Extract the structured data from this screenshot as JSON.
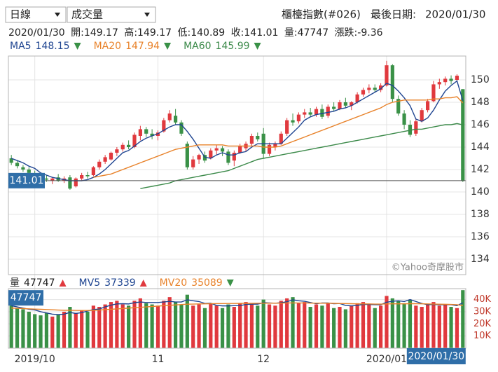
{
  "header": {
    "period": "日線",
    "indicator": "成交量",
    "symbol": "櫃檯指數(#026)",
    "last_date_label": "最後日期:",
    "watermark": "©Yahoo奇摩股市"
  },
  "quote": {
    "labels": {
      "open": "開:",
      "high": "高:",
      "low": "低:",
      "close": "收:",
      "volume": "量:",
      "change": "漲跌:"
    },
    "change": -9.36
  },
  "chart_data": {
    "type": "candlestick",
    "categories": [
      null,
      null,
      null,
      null,
      "2019/10",
      null,
      null,
      null,
      null,
      null,
      null,
      null,
      null,
      null,
      null,
      null,
      null,
      null,
      null,
      null,
      null,
      null,
      null,
      null,
      null,
      "11",
      null,
      null,
      null,
      null,
      null,
      null,
      null,
      null,
      null,
      null,
      null,
      null,
      null,
      null,
      null,
      null,
      null,
      "12",
      null,
      null,
      null,
      null,
      null,
      null,
      null,
      null,
      null,
      null,
      null,
      null,
      null,
      null,
      null,
      null,
      null,
      null,
      null,
      null,
      "2020/01",
      null,
      null,
      null,
      null,
      null,
      null,
      null,
      null,
      null,
      null,
      null,
      null,
      "2020/01/30"
    ],
    "open": [
      143.0,
      142.6,
      142.2,
      142.0,
      141.6,
      141.4,
      141.2,
      141.0,
      141.3,
      141.0,
      141.3,
      140.5,
      141.2,
      141.5,
      141.5,
      142.2,
      142.7,
      142.9,
      143.5,
      143.8,
      144.2,
      144.0,
      145.0,
      145.6,
      145.2,
      145.0,
      145.4,
      146.4,
      146.8,
      146.2,
      144.3,
      142.2,
      142.9,
      143.3,
      143.0,
      143.7,
      143.9,
      143.6,
      142.8,
      143.5,
      143.9,
      144.3,
      145.0,
      145.2,
      143.4,
      144.0,
      144.3,
      145.2,
      146.4,
      146.3,
      146.9,
      147.1,
      146.9,
      147.4,
      146.8,
      147.6,
      147.4,
      148.0,
      147.7,
      148.0,
      148.7,
      149.1,
      149.3,
      149.1,
      149.5,
      151.3,
      148.3,
      147.0,
      146.0,
      145.2,
      146.3,
      147.3,
      148.1,
      149.6,
      149.8,
      150.1,
      150.0,
      149.17
    ],
    "high": [
      143.3,
      142.8,
      142.4,
      142.2,
      141.9,
      141.7,
      141.5,
      141.3,
      141.6,
      141.4,
      141.5,
      141.3,
      141.7,
      141.8,
      142.3,
      142.9,
      143.3,
      143.6,
      144.0,
      144.4,
      144.6,
      145.3,
      145.9,
      145.8,
      145.6,
      145.5,
      146.6,
      147.3,
      147.4,
      146.4,
      144.5,
      143.2,
      143.4,
      143.6,
      143.9,
      144.2,
      144.1,
      143.8,
      143.7,
      144.3,
      144.5,
      145.2,
      145.3,
      145.7,
      144.4,
      144.5,
      145.4,
      146.6,
      147.0,
      147.1,
      147.4,
      147.5,
      147.6,
      147.8,
      147.8,
      148.0,
      148.2,
      148.4,
      148.1,
      148.9,
      149.3,
      149.6,
      149.6,
      149.7,
      151.7,
      151.4,
      148.6,
      147.3,
      146.4,
      146.5,
      147.5,
      148.3,
      149.9,
      150.1,
      150.3,
      150.4,
      150.5,
      149.17
    ],
    "low": [
      142.4,
      142.1,
      141.8,
      141.5,
      141.2,
      141.0,
      140.9,
      140.7,
      140.9,
      140.8,
      140.2,
      140.4,
      141.0,
      141.2,
      141.4,
      142.0,
      142.5,
      142.8,
      143.2,
      143.6,
      143.8,
      143.9,
      144.6,
      144.9,
      144.7,
      144.6,
      145.3,
      146.2,
      146.0,
      145.0,
      142.0,
      142.0,
      142.5,
      142.6,
      142.9,
      143.3,
      143.2,
      142.4,
      142.3,
      143.4,
      143.6,
      144.1,
      144.5,
      143.0,
      143.2,
      143.7,
      144.2,
      145.0,
      145.9,
      146.1,
      146.6,
      146.7,
      146.7,
      146.5,
      146.6,
      147.2,
      147.3,
      147.5,
      147.3,
      147.9,
      148.5,
      148.8,
      148.9,
      148.9,
      149.4,
      148.0,
      146.8,
      145.6,
      144.9,
      145.0,
      146.2,
      147.1,
      148.0,
      149.2,
      149.5,
      149.6,
      149.8,
      140.89
    ],
    "close": [
      142.6,
      142.3,
      142.0,
      141.7,
      141.4,
      141.2,
      141.1,
      141.2,
      141.0,
      141.2,
      140.3,
      141.2,
      141.5,
      141.4,
      142.2,
      142.7,
      143.1,
      143.5,
      143.8,
      144.2,
      144.0,
      145.1,
      145.6,
      145.2,
      145.0,
      145.3,
      146.4,
      147.0,
      146.2,
      145.2,
      142.2,
      142.9,
      143.3,
      142.8,
      143.7,
      143.9,
      143.6,
      142.6,
      143.5,
      144.1,
      144.3,
      145.0,
      144.7,
      143.4,
      144.2,
      144.3,
      145.2,
      146.4,
      146.2,
      146.9,
      147.1,
      146.9,
      147.4,
      146.7,
      147.6,
      147.4,
      148.0,
      147.7,
      148.0,
      148.7,
      149.1,
      149.3,
      149.1,
      149.5,
      151.3,
      148.3,
      147.0,
      146.0,
      145.1,
      146.3,
      147.3,
      148.1,
      149.6,
      149.8,
      150.1,
      149.9,
      150.37,
      141.01
    ],
    "up_color": "#e0393e",
    "down_color": "#3a9147",
    "ylim": [
      132.625,
      152.125
    ],
    "yticks": [
      134,
      136,
      138,
      140,
      142,
      144,
      146,
      148,
      150
    ],
    "grid": true,
    "ma": [
      {
        "name": "MA5",
        "color": "#1f4591",
        "values": [
          143.0,
          142.8,
          142.6,
          142.3,
          142.1,
          141.7,
          141.5,
          141.3,
          141.2,
          141.1,
          141.0,
          141.0,
          141.0,
          141.1,
          141.3,
          141.6,
          142.0,
          142.5,
          143.0,
          143.5,
          143.7,
          144.1,
          144.5,
          144.8,
          145.0,
          145.2,
          145.5,
          145.8,
          146.0,
          146.0,
          145.4,
          144.7,
          143.9,
          143.1,
          143.0,
          143.3,
          143.5,
          143.3,
          143.3,
          143.5,
          143.6,
          144.0,
          144.3,
          144.3,
          144.3,
          144.3,
          144.3,
          144.8,
          145.3,
          145.8,
          146.4,
          146.7,
          146.9,
          147.0,
          147.1,
          147.2,
          147.4,
          147.5,
          147.7,
          148.0,
          148.3,
          148.6,
          148.9,
          149.2,
          149.7,
          149.5,
          149.0,
          148.4,
          147.7,
          146.5,
          146.3,
          146.6,
          147.3,
          148.2,
          149.0,
          149.5,
          149.9,
          148.15
        ]
      },
      {
        "name": "MA20",
        "color": "#e8822a",
        "values": [
          null,
          null,
          null,
          null,
          null,
          null,
          null,
          null,
          null,
          null,
          null,
          null,
          null,
          null,
          141.3,
          141.4,
          141.5,
          141.6,
          141.8,
          142.0,
          142.2,
          142.4,
          142.6,
          142.8,
          143.0,
          143.2,
          143.4,
          143.6,
          143.8,
          143.9,
          144.0,
          144.1,
          144.2,
          144.2,
          144.2,
          144.2,
          144.2,
          144.1,
          144.1,
          144.1,
          144.1,
          144.1,
          144.1,
          144.0,
          144.0,
          144.0,
          144.1,
          144.3,
          144.5,
          144.7,
          144.9,
          145.1,
          145.3,
          145.5,
          145.7,
          145.9,
          146.1,
          146.3,
          146.5,
          146.7,
          146.9,
          147.1,
          147.3,
          147.5,
          147.8,
          148.0,
          148.1,
          148.2,
          148.2,
          148.2,
          148.2,
          148.2,
          148.3,
          148.3,
          148.4,
          148.4,
          148.5,
          147.94
        ]
      },
      {
        "name": "MA60",
        "color": "#3c8a4a",
        "values": [
          null,
          null,
          null,
          null,
          null,
          null,
          null,
          null,
          null,
          null,
          null,
          null,
          null,
          null,
          null,
          null,
          null,
          null,
          null,
          null,
          null,
          null,
          140.3,
          140.4,
          140.5,
          140.6,
          140.7,
          140.8,
          141.0,
          141.1,
          141.2,
          141.3,
          141.4,
          141.5,
          141.6,
          141.7,
          141.8,
          141.9,
          142.1,
          142.3,
          142.5,
          142.7,
          142.9,
          143.0,
          143.1,
          143.2,
          143.3,
          143.4,
          143.5,
          143.6,
          143.7,
          143.8,
          143.9,
          144.0,
          144.1,
          144.2,
          144.3,
          144.4,
          144.5,
          144.6,
          144.7,
          144.8,
          144.9,
          145.0,
          145.1,
          145.2,
          145.3,
          145.4,
          145.5,
          145.6,
          145.6,
          145.7,
          145.8,
          145.9,
          146.0,
          146.0,
          146.1,
          145.99
        ]
      }
    ],
    "volume": {
      "name": "量",
      "values": [
        36000,
        33000,
        32000,
        30000,
        28000,
        27000,
        29000,
        26000,
        28000,
        30000,
        34000,
        29000,
        31000,
        30000,
        35000,
        34000,
        36000,
        38000,
        39000,
        36000,
        35000,
        39000,
        41000,
        37000,
        36000,
        35000,
        39000,
        42000,
        38000,
        36000,
        44000,
        35000,
        36000,
        33000,
        37000,
        35000,
        33000,
        36000,
        34000,
        37000,
        38000,
        37000,
        35000,
        40000,
        36000,
        35000,
        39000,
        41000,
        42000,
        37000,
        38000,
        34000,
        36000,
        35000,
        37000,
        33000,
        34000,
        32000,
        35000,
        37000,
        38000,
        36000,
        33000,
        35000,
        43000,
        41000,
        39000,
        37000,
        40000,
        35000,
        34000,
        36000,
        38000,
        35000,
        36000,
        34000,
        33000,
        47747
      ],
      "ylim": [
        0,
        49000
      ],
      "yticks": [
        {
          "value": 10000,
          "label": "10K"
        },
        {
          "value": 20000,
          "label": "20K"
        },
        {
          "value": 30000,
          "label": "30K"
        },
        {
          "value": 40000,
          "label": "40K"
        }
      ],
      "averages": [
        {
          "name": "MV5",
          "color": "#1f4591",
          "values": [
            35000,
            34000,
            33000,
            32000,
            31500,
            30000,
            29000,
            28000,
            27600,
            28000,
            29400,
            28600,
            29200,
            30600,
            31800,
            32200,
            34000,
            35400,
            36400,
            36600,
            36400,
            37400,
            38000,
            37600,
            37600,
            37600,
            38000,
            38600,
            38000,
            38000,
            39800,
            39000,
            38400,
            36800,
            37000,
            35200,
            34800,
            34800,
            35000,
            35000,
            36000,
            36200,
            36200,
            37400,
            37200,
            37000,
            37400,
            38200,
            39800,
            39000,
            38600,
            37600,
            36600,
            37200,
            37200,
            36600,
            36800,
            35200,
            34800,
            35200,
            36000,
            36000,
            35800,
            35800,
            37800,
            38600,
            39000,
            38400,
            40000,
            38400,
            36800,
            35800,
            36000,
            35800,
            35800,
            35800,
            35000,
            37339
          ]
        },
        {
          "name": "MV20",
          "color": "#e8822a",
          "values": [
            33000,
            32800,
            32600,
            32400,
            32200,
            32000,
            31800,
            31600,
            31400,
            31200,
            31200,
            31100,
            31000,
            31000,
            31200,
            31400,
            31700,
            32000,
            32300,
            32600,
            33000,
            33300,
            33600,
            34000,
            34300,
            34600,
            35000,
            35300,
            35600,
            35900,
            36200,
            36300,
            36400,
            36500,
            36600,
            36700,
            36700,
            36800,
            36800,
            36900,
            36900,
            36900,
            37000,
            37000,
            37000,
            37100,
            37100,
            37200,
            37200,
            37200,
            37200,
            37100,
            37100,
            37000,
            37000,
            36900,
            36800,
            36700,
            36600,
            36500,
            36400,
            36400,
            36300,
            36300,
            36400,
            36500,
            36500,
            36500,
            36600,
            36600,
            36500,
            36400,
            36300,
            36200,
            36100,
            36000,
            35800,
            35089
          ]
        }
      ]
    }
  }
}
